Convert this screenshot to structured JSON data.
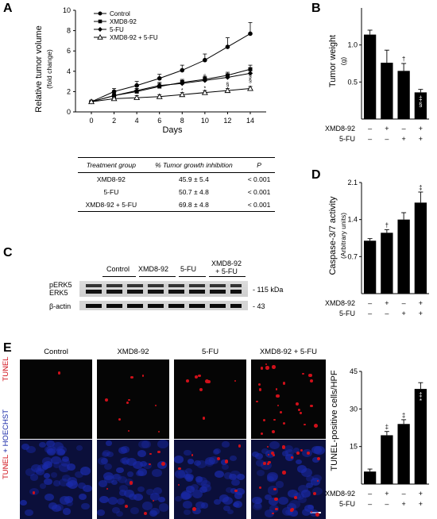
{
  "panels": {
    "A": "A",
    "B": "B",
    "C": "C",
    "D": "D",
    "E": "E"
  },
  "chart_data": [
    {
      "type": "line",
      "panel": "A",
      "ylabel": "Relative tumor volume",
      "ylabel_sub": "(fold change)",
      "xlabel": "Days",
      "ylim": [
        0,
        10
      ],
      "yticks": [
        0,
        2,
        4,
        6,
        8,
        10
      ],
      "x": [
        0,
        2,
        4,
        6,
        8,
        10,
        12,
        14
      ],
      "series": [
        {
          "name": "Control",
          "marker": "circle-filled",
          "values": [
            1.0,
            2.0,
            2.6,
            3.3,
            4.1,
            5.1,
            6.4,
            7.7
          ],
          "err": [
            0.1,
            0.3,
            0.4,
            0.4,
            0.5,
            0.6,
            0.9,
            1.1
          ]
        },
        {
          "name": "XMD8-92",
          "marker": "square-filled",
          "values": [
            1.0,
            1.6,
            2.0,
            2.5,
            2.9,
            3.2,
            3.6,
            4.2
          ],
          "err": [
            0.1,
            0.2,
            0.3,
            0.3,
            0.3,
            0.3,
            0.3,
            0.4
          ]
        },
        {
          "name": "5-FU",
          "marker": "diamond-filled",
          "values": [
            1.0,
            1.6,
            2.1,
            2.6,
            2.8,
            3.1,
            3.4,
            3.8
          ],
          "err": [
            0.1,
            0.2,
            0.2,
            0.3,
            0.3,
            0.3,
            0.3,
            0.3
          ]
        },
        {
          "name": "XMD8-92 + 5-FU",
          "marker": "triangle-open",
          "values": [
            1.0,
            1.3,
            1.4,
            1.5,
            1.7,
            1.9,
            2.1,
            2.3
          ],
          "err": [
            0.1,
            0.1,
            0.2,
            0.2,
            0.2,
            0.2,
            0.2,
            0.2
          ]
        }
      ],
      "annotations": [
        "*",
        "*",
        "§",
        "§",
        "§",
        "§"
      ]
    },
    {
      "type": "bar",
      "panel": "B",
      "ylabel": "Tumor weight",
      "ylabel_sub": "(g)",
      "ylim": [
        0,
        1.5
      ],
      "yticks": [
        0.5,
        1.0
      ],
      "values": [
        1.14,
        0.76,
        0.65,
        0.36
      ],
      "err": [
        0.06,
        0.17,
        0.1,
        0.04
      ],
      "markers": [
        "",
        "",
        "†",
        "‡ §"
      ]
    },
    {
      "type": "bar",
      "panel": "D",
      "ylabel": "Caspase-3/7 activity",
      "ylabel_sub": "(Arbitrary units)",
      "ylim": [
        0,
        2.1
      ],
      "yticks": [
        0.7,
        1.4,
        2.1
      ],
      "values": [
        1.0,
        1.15,
        1.4,
        1.72
      ],
      "err": [
        0.04,
        0.06,
        0.13,
        0.2
      ],
      "markers": [
        "",
        "†",
        "",
        "‡"
      ]
    },
    {
      "type": "bar",
      "panel": "E",
      "ylabel": "TUNEL-positive cells/HPF",
      "ylim": [
        0,
        45
      ],
      "yticks": [
        15,
        30,
        45
      ],
      "values": [
        5,
        19.5,
        24,
        38
      ],
      "err": [
        1,
        1.5,
        1.7,
        2.5
      ],
      "markers": [
        "",
        "‡",
        "‡",
        "‡ *"
      ]
    }
  ],
  "treatment_table": {
    "headers": [
      "Treatment group",
      "% Tumor growth inhibition",
      "P"
    ],
    "rows": [
      [
        "XMD8-92",
        "45.9 ± 5.4",
        "< 0.001"
      ],
      [
        "5-FU",
        "50.7 ± 4.8",
        "< 0.001"
      ],
      [
        "XMD8-92 + 5-FU",
        "69.8 ± 4.8",
        "< 0.001"
      ]
    ]
  },
  "condition_rows": {
    "labels": [
      "XMD8-92",
      "5-FU"
    ],
    "xmd": [
      "–",
      "+",
      "–",
      "+"
    ],
    "fu": [
      "–",
      "–",
      "+",
      "+"
    ]
  },
  "western": {
    "groups": [
      "Control",
      "XMD8-92",
      "5-FU",
      "XMD8-92\n+ 5-FU"
    ],
    "labels": [
      "pERK5",
      "ERK5",
      "β-actin"
    ],
    "kda": [
      "- 115 kDa",
      "- 43"
    ]
  },
  "micrographs": {
    "columns": [
      "Control",
      "XMD8-92",
      "5-FU",
      "XMD8-92 + 5-FU"
    ],
    "row1": "TUNEL",
    "row2_a": "TUNEL",
    "row2_b": " + HOECHST",
    "colors": {
      "tunel": "#d0101a",
      "hoechst": "#1a2aa8"
    }
  }
}
